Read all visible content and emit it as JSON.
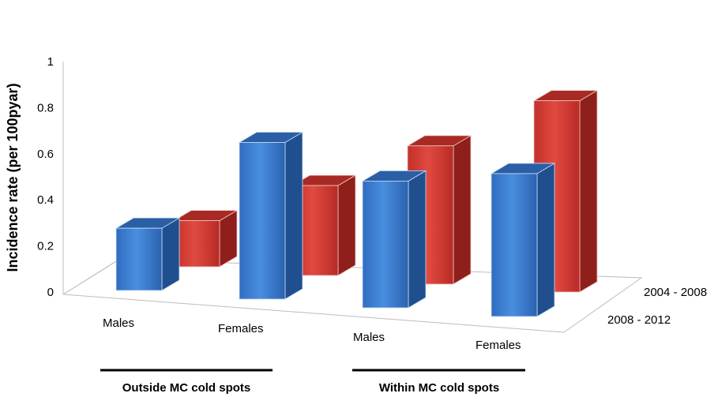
{
  "chart_data": {
    "type": "bar",
    "subtype": "3d-grouped",
    "ylabel": "Incidence rate (per 100pyar)",
    "xlabel": "",
    "ylim": [
      0,
      1
    ],
    "yticks": [
      "0",
      "0.2",
      "0.4",
      "0.6",
      "0.8",
      "1"
    ],
    "categories": [
      "Males",
      "Females",
      "Males",
      "Females"
    ],
    "groups": [
      {
        "label": "Outside MC cold spots",
        "categories": [
          "Males",
          "Females"
        ]
      },
      {
        "label": "Within MC cold spots",
        "categories": [
          "Males",
          "Females"
        ]
      }
    ],
    "series": [
      {
        "name": "2008 - 2012",
        "color": "#3a78c8",
        "values": [
          0.27,
          0.68,
          0.55,
          0.62
        ]
      },
      {
        "name": "2004 - 2008",
        "color": "#cf3b34",
        "values": [
          0.2,
          0.39,
          0.6,
          0.83
        ]
      }
    ]
  }
}
